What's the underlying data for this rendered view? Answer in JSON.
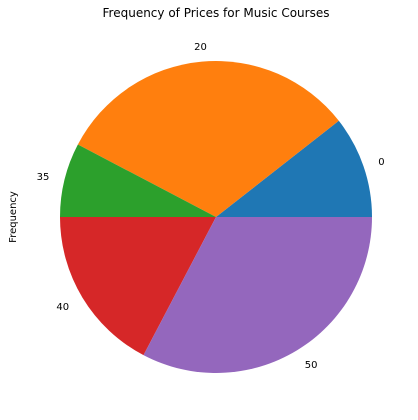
{
  "chart_data": {
    "type": "pie",
    "title": "Frequency of Prices for Music Courses",
    "ylabel": "Frequency",
    "labels": [
      "0",
      "20",
      "35",
      "40",
      "50"
    ],
    "values": [
      11,
      33,
      8,
      18,
      34
    ],
    "colors": [
      "#1f77b4",
      "#ff7f0e",
      "#2ca02c",
      "#d62728",
      "#9467bd"
    ],
    "start_angle_deg": 0,
    "direction": "counterclockwise"
  }
}
